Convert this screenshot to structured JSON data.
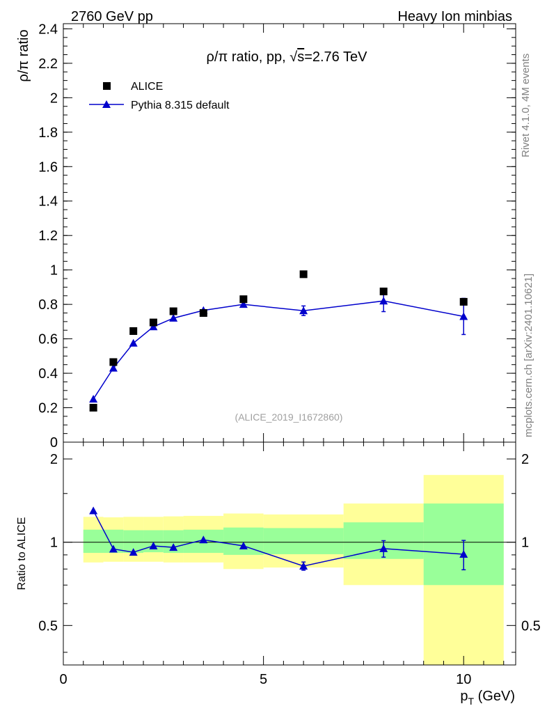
{
  "header": {
    "left": "2760 GeV pp",
    "right": "Heavy Ion minbias"
  },
  "side_labels": {
    "rivet": "Rivet 4.1.0,  4M events",
    "mcplots": "mcplots.cern.ch [arXiv:2401.10621]"
  },
  "colors": {
    "mc": "#0000cc",
    "data": "#000000",
    "band_inner": "#99ff99",
    "band_outer": "#ffff99"
  },
  "chart_data": [
    {
      "type": "scatter",
      "title_prefix": "ρ/π ratio, pp, ",
      "title_sqrt": "√",
      "title_s": "s",
      "title_suffix": "=2.76 TeV",
      "ylabel": "ρ/π ratio",
      "watermark": "(ALICE_2019_I1672860)",
      "xlim": [
        0,
        11.3
      ],
      "ylim": [
        0,
        2.43
      ],
      "yticks": [
        0,
        0.2,
        0.4,
        0.6,
        0.8,
        1,
        1.2,
        1.4,
        1.6,
        1.8,
        2,
        2.2,
        2.4
      ],
      "ytick_labels": [
        "0",
        "0.2",
        "0.4",
        "0.6",
        "0.8",
        "1",
        "1.2",
        "1.4",
        "1.6",
        "1.8",
        "2",
        "2.2",
        "2.4"
      ],
      "legend": [
        {
          "label": "ALICE",
          "marker": "square"
        },
        {
          "label": "Pythia 8.315 default",
          "marker": "triangle"
        }
      ],
      "series": [
        {
          "name": "ALICE",
          "x": [
            0.75,
            1.25,
            1.75,
            2.25,
            2.75,
            3.5,
            4.5,
            6.0,
            8.0,
            10.0
          ],
          "y": [
            0.2,
            0.465,
            0.645,
            0.695,
            0.76,
            0.75,
            0.83,
            0.975,
            0.875,
            0.815
          ]
        },
        {
          "name": "Pythia 8.315 default",
          "x": [
            0.75,
            1.25,
            1.75,
            2.25,
            2.75,
            3.5,
            4.5,
            6.0,
            8.0,
            10.0
          ],
          "y": [
            0.25,
            0.43,
            0.575,
            0.67,
            0.72,
            0.765,
            0.8,
            0.763,
            0.82,
            0.73
          ],
          "yerr": [
            0.003,
            0.003,
            0.003,
            0.004,
            0.004,
            0.006,
            0.01,
            0.028,
            0.062,
            0.105
          ]
        }
      ]
    },
    {
      "type": "scatter",
      "ylabel": "Ratio to ALICE",
      "xlabel_main": "p",
      "xlabel_sub": "T",
      "xlabel_unit": " (GeV)",
      "xlim": [
        0,
        11.3
      ],
      "ylim": [
        0.36,
        2.3
      ],
      "yscale": "log",
      "xticks": [
        0,
        5,
        10
      ],
      "xtick_labels": [
        "0",
        "5",
        "10"
      ],
      "yticks": [
        0.5,
        1,
        2
      ],
      "ytick_labels": [
        "0.5",
        "1",
        "2"
      ],
      "bins": [
        {
          "x0": 0.5,
          "x1": 1.0,
          "inner": [
            0.915,
            1.11
          ],
          "outer": [
            0.845,
            1.235
          ]
        },
        {
          "x0": 1.0,
          "x1": 1.5,
          "inner": [
            0.915,
            1.11
          ],
          "outer": [
            0.85,
            1.23
          ]
        },
        {
          "x0": 1.5,
          "x1": 2.0,
          "inner": [
            0.915,
            1.105
          ],
          "outer": [
            0.85,
            1.235
          ]
        },
        {
          "x0": 2.0,
          "x1": 2.5,
          "inner": [
            0.92,
            1.105
          ],
          "outer": [
            0.85,
            1.235
          ]
        },
        {
          "x0": 2.5,
          "x1": 3.0,
          "inner": [
            0.915,
            1.105
          ],
          "outer": [
            0.845,
            1.24
          ]
        },
        {
          "x0": 3.0,
          "x1": 4.0,
          "inner": [
            0.915,
            1.11
          ],
          "outer": [
            0.845,
            1.245
          ]
        },
        {
          "x0": 4.0,
          "x1": 5.0,
          "inner": [
            0.9,
            1.13
          ],
          "outer": [
            0.8,
            1.27
          ]
        },
        {
          "x0": 5.0,
          "x1": 7.0,
          "inner": [
            0.905,
            1.125
          ],
          "outer": [
            0.81,
            1.26
          ]
        },
        {
          "x0": 7.0,
          "x1": 9.0,
          "inner": [
            0.87,
            1.18
          ],
          "outer": [
            0.7,
            1.38
          ]
        },
        {
          "x0": 9.0,
          "x1": 11.0,
          "inner": [
            0.7,
            1.38
          ],
          "outer": [
            0.36,
            1.75
          ]
        }
      ],
      "series": [
        {
          "name": "Pythia 8.315 default / ALICE",
          "x": [
            0.75,
            1.25,
            1.75,
            2.25,
            2.75,
            3.5,
            4.5,
            6.0,
            8.0,
            10.0
          ],
          "y": [
            1.3,
            0.945,
            0.92,
            0.97,
            0.958,
            1.02,
            0.97,
            0.82,
            0.948,
            0.905
          ],
          "yerr": [
            0.005,
            0.005,
            0.006,
            0.007,
            0.007,
            0.01,
            0.012,
            0.028,
            0.065,
            0.11
          ]
        }
      ]
    }
  ]
}
